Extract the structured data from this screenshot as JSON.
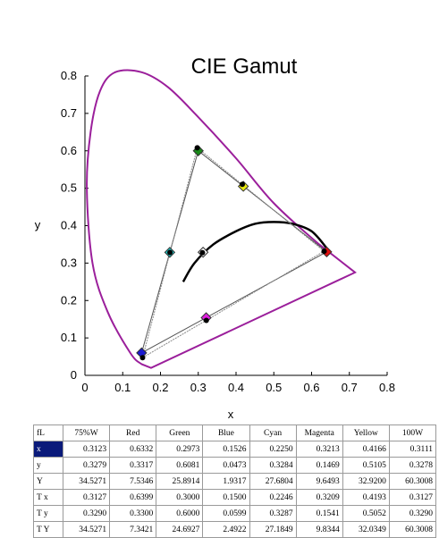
{
  "chart_data": {
    "type": "scatter",
    "title": "CIE Gamut",
    "xlabel": "x",
    "ylabel": "y",
    "xlim": [
      0,
      0.8
    ],
    "ylim": [
      0,
      0.8
    ],
    "xticks": [
      "0",
      "0.1",
      "0.2",
      "0.3",
      "0.4",
      "0.5",
      "0.6",
      "0.7",
      "0.8"
    ],
    "yticks": [
      "0",
      "0.1",
      "0.2",
      "0.3",
      "0.4",
      "0.5",
      "0.6",
      "0.7",
      "0.8"
    ],
    "grid": false,
    "spectral_locus": {
      "color": "#9b1f9b",
      "points": [
        [
          0.715,
          0.275
        ],
        [
          0.62,
          0.35
        ],
        [
          0.5,
          0.46
        ],
        [
          0.4,
          0.58
        ],
        [
          0.3,
          0.69
        ],
        [
          0.22,
          0.77
        ],
        [
          0.15,
          0.81
        ],
        [
          0.08,
          0.81
        ],
        [
          0.04,
          0.76
        ],
        [
          0.015,
          0.65
        ],
        [
          0.005,
          0.5
        ],
        [
          0.02,
          0.3
        ],
        [
          0.06,
          0.17
        ],
        [
          0.12,
          0.06
        ],
        [
          0.15,
          0.03
        ],
        [
          0.175,
          0.02
        ],
        [
          0.715,
          0.275
        ]
      ]
    },
    "planckian_locus": {
      "color": "#000000",
      "points": [
        [
          0.26,
          0.25
        ],
        [
          0.29,
          0.3
        ],
        [
          0.34,
          0.35
        ],
        [
          0.4,
          0.385
        ],
        [
          0.45,
          0.405
        ],
        [
          0.5,
          0.41
        ],
        [
          0.55,
          0.405
        ],
        [
          0.6,
          0.385
        ],
        [
          0.64,
          0.34
        ]
      ]
    },
    "target_triangle": {
      "x": [
        0.64,
        0.3,
        0.15
      ],
      "y": [
        0.33,
        0.6,
        0.06
      ],
      "color": "#555555"
    },
    "measured_triangle": {
      "x": [
        0.6332,
        0.2973,
        0.1526
      ],
      "y": [
        0.3317,
        0.6081,
        0.0473
      ],
      "color": "#888888"
    },
    "target_markers": [
      {
        "name": "Red",
        "x": 0.64,
        "y": 0.33,
        "color": "#e01010"
      },
      {
        "name": "Green",
        "x": 0.3,
        "y": 0.6,
        "color": "#1a8a1a"
      },
      {
        "name": "Blue",
        "x": 0.15,
        "y": 0.06,
        "color": "#1a1ad0"
      },
      {
        "name": "Cyan",
        "x": 0.2246,
        "y": 0.3287,
        "color": "#20c8c8"
      },
      {
        "name": "Magenta",
        "x": 0.3209,
        "y": 0.1541,
        "color": "#e020e0"
      },
      {
        "name": "Yellow",
        "x": 0.4193,
        "y": 0.5052,
        "color": "#e8e810"
      },
      {
        "name": "100W",
        "x": 0.3127,
        "y": 0.329,
        "color": "#ffffff"
      }
    ],
    "measured_points": {
      "x": [
        0.6332,
        0.2973,
        0.1526,
        0.225,
        0.3213,
        0.4166,
        0.3111
      ],
      "y": [
        0.3317,
        0.6081,
        0.0473,
        0.3284,
        0.1469,
        0.5105,
        0.3278
      ]
    }
  },
  "table": {
    "corner": "fL",
    "columns": [
      "75%W",
      "Red",
      "Green",
      "Blue",
      "Cyan",
      "Magenta",
      "Yellow",
      "100W"
    ],
    "rows": [
      {
        "label": "x",
        "values": [
          "0.3123",
          "0.6332",
          "0.2973",
          "0.1526",
          "0.2250",
          "0.3213",
          "0.4166",
          "0.3111"
        ]
      },
      {
        "label": "y",
        "values": [
          "0.3279",
          "0.3317",
          "0.6081",
          "0.0473",
          "0.3284",
          "0.1469",
          "0.5105",
          "0.3278"
        ]
      },
      {
        "label": "Y",
        "values": [
          "34.5271",
          "7.5346",
          "25.8914",
          "1.9317",
          "27.6804",
          "9.6493",
          "32.9200",
          "60.3008"
        ]
      },
      {
        "label": "T x",
        "values": [
          "0.3127",
          "0.6399",
          "0.3000",
          "0.1500",
          "0.2246",
          "0.3209",
          "0.4193",
          "0.3127"
        ]
      },
      {
        "label": "T y",
        "values": [
          "0.3290",
          "0.3300",
          "0.6000",
          "0.0599",
          "0.3287",
          "0.1541",
          "0.5052",
          "0.3290"
        ]
      },
      {
        "label": "T Y",
        "values": [
          "34.5271",
          "7.3421",
          "24.6927",
          "2.4922",
          "27.1849",
          "9.8344",
          "32.0349",
          "60.3008"
        ]
      }
    ]
  }
}
